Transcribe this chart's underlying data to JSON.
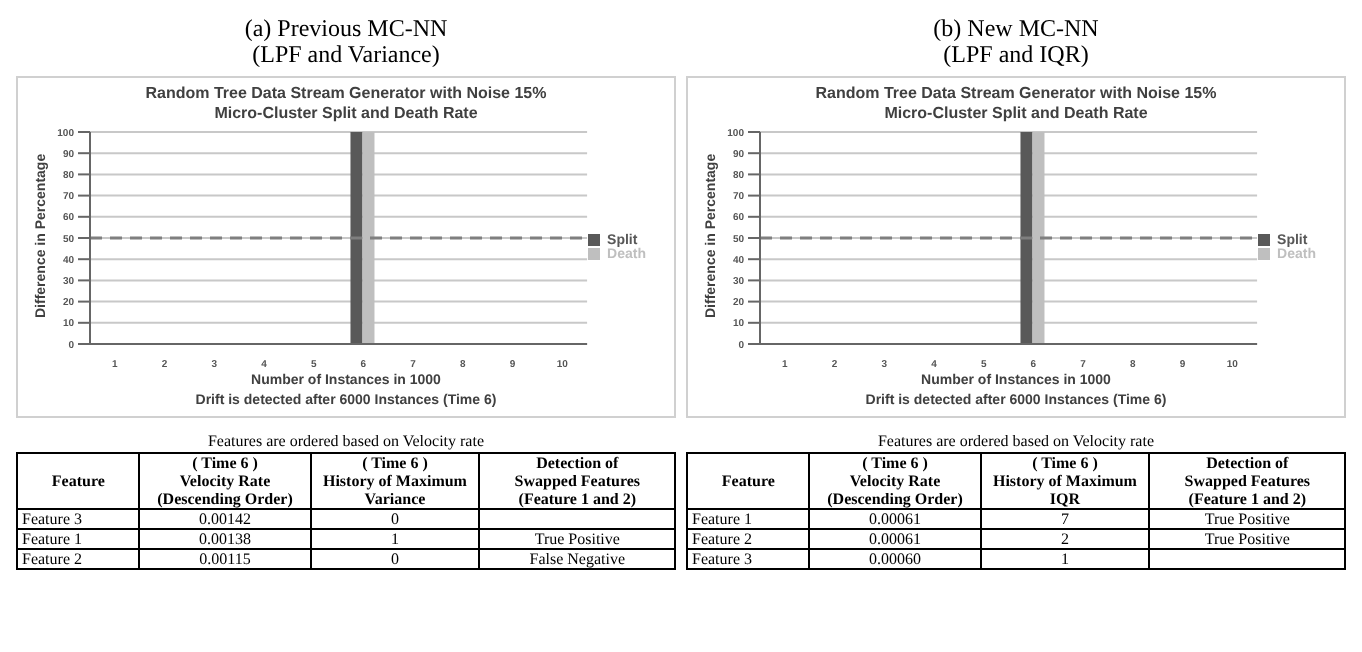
{
  "chart_data": [
    {
      "type": "bar",
      "subtitle": "(a) Previous MC-NN\n(LPF and Variance)",
      "title": "Random Tree Data Stream Generator with Noise 15%\nMicro-Cluster Split and Death Rate",
      "xlabel": "Number of Instances in 1000",
      "ylabel": "Difference in Percentage",
      "annotations": [
        "Drift is detected after 6000 Instances (Time 6)"
      ],
      "categories": [
        "1",
        "2",
        "3",
        "4",
        "5",
        "6",
        "7",
        "8",
        "9",
        "10"
      ],
      "series": [
        {
          "name": "Split",
          "color": "#595959",
          "values": [
            0,
            0,
            0,
            0,
            0,
            100,
            0,
            0,
            0,
            0
          ]
        },
        {
          "name": "Death",
          "color": "#bfbfbf",
          "values": [
            0,
            0,
            0,
            0,
            0,
            100,
            0,
            0,
            0,
            0
          ]
        }
      ],
      "ylim": [
        0,
        100
      ],
      "yticks": [
        0,
        10,
        20,
        30,
        40,
        50,
        60,
        70,
        80,
        90,
        100
      ],
      "grid": "y",
      "legend": "right",
      "ref_lines": [
        {
          "axis": "y",
          "value": 50,
          "color": "#7f7f7f",
          "line_style": "dashed"
        }
      ]
    },
    {
      "type": "bar",
      "subtitle": "(b) New MC-NN\n(LPF and IQR)",
      "title": "Random Tree Data Stream Generator with Noise 15%\nMicro-Cluster Split and Death Rate",
      "xlabel": "Number of Instances in 1000",
      "ylabel": "Difference in Percentage",
      "annotations": [
        "Drift is detected after 6000 Instances (Time 6)"
      ],
      "categories": [
        "1",
        "2",
        "3",
        "4",
        "5",
        "6",
        "7",
        "8",
        "9",
        "10"
      ],
      "series": [
        {
          "name": "Split",
          "color": "#595959",
          "values": [
            0,
            0,
            0,
            0,
            0,
            100,
            0,
            0,
            0,
            0
          ]
        },
        {
          "name": "Death",
          "color": "#bfbfbf",
          "values": [
            0,
            0,
            0,
            0,
            0,
            100,
            0,
            0,
            0,
            0
          ]
        }
      ],
      "ylim": [
        0,
        100
      ],
      "yticks": [
        0,
        10,
        20,
        30,
        40,
        50,
        60,
        70,
        80,
        90,
        100
      ],
      "grid": "y",
      "legend": "right",
      "ref_lines": [
        {
          "axis": "y",
          "value": 50,
          "color": "#7f7f7f",
          "line_style": "dashed"
        }
      ]
    },
    {
      "type": "other",
      "title": "Features are ordered based on Velocity rate",
      "annotations": [
        "Feature",
        "( Time 6 )\nVelocity Rate\n(Descending Order)",
        "( Time 6 )\nHistory of Maximum\nVariance",
        "Detection of\nSwapped Features\n(Feature 1 and 2)",
        "Feature 3",
        "0.00142",
        "0",
        null,
        "Feature 1",
        "0.00138",
        "1",
        "True Positive",
        "Feature 2",
        "0.00115",
        "0",
        "False Negative"
      ]
    },
    {
      "type": "other",
      "title": "Features are ordered based on Velocity rate",
      "annotations": [
        "Feature",
        "( Time 6 )\nVelocity Rate\n(Descending Order)",
        "( Time 6 )\nHistory of Maximum\nIQR",
        "Detection of\nSwapped Features\n(Feature 1 and 2)",
        "Feature 1",
        "0.00061",
        "7",
        "True Positive",
        "Feature 2",
        "0.00061",
        "2",
        "True Positive",
        "Feature 3",
        "0.00060",
        "1",
        null
      ]
    }
  ]
}
